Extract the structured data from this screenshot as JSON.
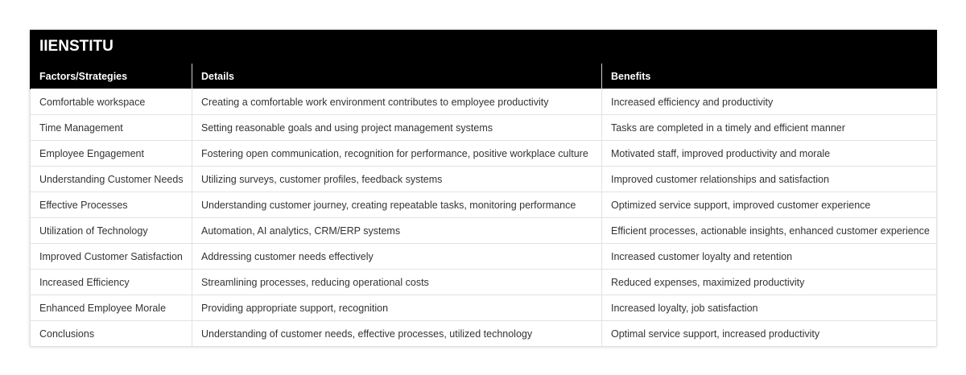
{
  "table": {
    "title": "IIENSTITU",
    "headers": [
      "Factors/Strategies",
      "Details",
      "Benefits"
    ],
    "rows": [
      [
        "Comfortable workspace",
        "Creating a comfortable work environment contributes to employee productivity",
        "Increased efficiency and productivity"
      ],
      [
        "Time Management",
        "Setting reasonable goals and using project management systems",
        "Tasks are completed in a timely and efficient manner"
      ],
      [
        "Employee Engagement",
        "Fostering open communication, recognition for performance, positive workplace culture",
        "Motivated staff, improved productivity and morale"
      ],
      [
        "Understanding Customer Needs",
        "Utilizing surveys, customer profiles, feedback systems",
        "Improved customer relationships and satisfaction"
      ],
      [
        "Effective Processes",
        "Understanding customer journey, creating repeatable tasks, monitoring performance",
        "Optimized service support, improved customer experience"
      ],
      [
        "Utilization of Technology",
        "Automation, AI analytics, CRM/ERP systems",
        "Efficient processes, actionable insights, enhanced customer experience"
      ],
      [
        "Improved Customer Satisfaction",
        "Addressing customer needs effectively",
        "Increased customer loyalty and retention"
      ],
      [
        "Increased Efficiency",
        "Streamlining processes, reducing operational costs",
        "Reduced expenses, maximized productivity"
      ],
      [
        "Enhanced Employee Morale",
        "Providing appropriate support, recognition",
        "Increased loyalty, job satisfaction"
      ],
      [
        "Conclusions",
        "Understanding of customer needs, effective processes, utilized technology",
        "Optimal service support, increased productivity"
      ]
    ]
  }
}
